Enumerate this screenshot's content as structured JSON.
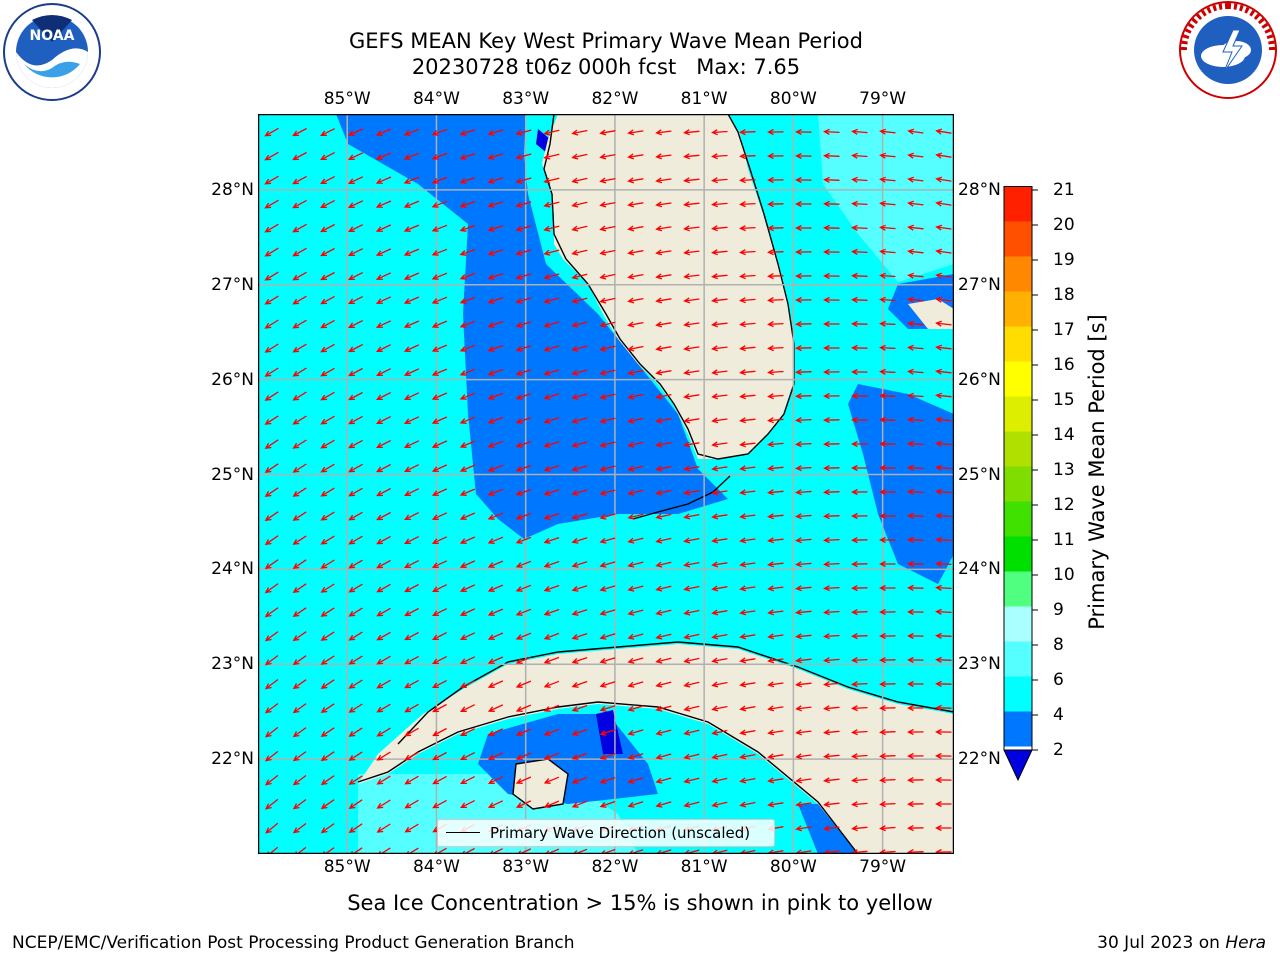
{
  "title": {
    "line1": "GEFS MEAN Key West Primary Wave Mean Period",
    "line2": "20230728 t06z 000h fcst   Max: 7.65"
  },
  "axes": {
    "lon_labels": [
      "85°W",
      "84°W",
      "83°W",
      "82°W",
      "81°W",
      "80°W",
      "79°W"
    ],
    "lat_labels": [
      "28°N",
      "27°N",
      "26°N",
      "25°N",
      "24°N",
      "23°N",
      "22°N"
    ],
    "lon_values": [
      -85,
      -84,
      -83,
      -82,
      -81,
      -80,
      -79
    ],
    "lat_values": [
      28,
      27,
      26,
      25,
      24,
      23,
      22
    ],
    "lon_range": [
      -86.0,
      -78.2
    ],
    "lat_range": [
      21.0,
      28.8
    ],
    "grid": true
  },
  "legend": {
    "label": "Primary Wave Direction (unscaled)",
    "placement": "lower-center"
  },
  "colorbar": {
    "label": "Primary Wave Mean Period [s]",
    "ticks": [
      "2",
      "4",
      "6",
      "8",
      "9",
      "10",
      "11",
      "12",
      "13",
      "14",
      "15",
      "16",
      "17",
      "18",
      "19",
      "20",
      "21"
    ],
    "colors": [
      "#0000e0",
      "#0077ff",
      "#00ffff",
      "#55ffff",
      "#aaffff",
      "#50ff80",
      "#00e000",
      "#40e000",
      "#80dd00",
      "#b0e000",
      "#ddee00",
      "#ffff00",
      "#ffdd00",
      "#ffb000",
      "#ff8800",
      "#ff5000",
      "#ff2000",
      "#ff0000"
    ],
    "extend": "min"
  },
  "map_colors": {
    "land": "#efecdc",
    "fill_2_4": "#0077ff",
    "fill_4_6": "#00ffff",
    "fill_6_8": "#55ffff",
    "fill_below_2": "#0000e0",
    "arrow": "#ff0000",
    "coast": "#000000",
    "grid": "#b0b0b0"
  },
  "note": "Sea Ice Concentration > 15% is shown in pink to yellow",
  "footer": {
    "left": "NCEP/EMC/Verification Post Processing Product Generation Branch",
    "date": "30 Jul 2023 on ",
    "machine": "Hera"
  },
  "icons": {
    "agency_left": "noaa-logo-icon",
    "agency_right": "nws-logo-icon"
  }
}
